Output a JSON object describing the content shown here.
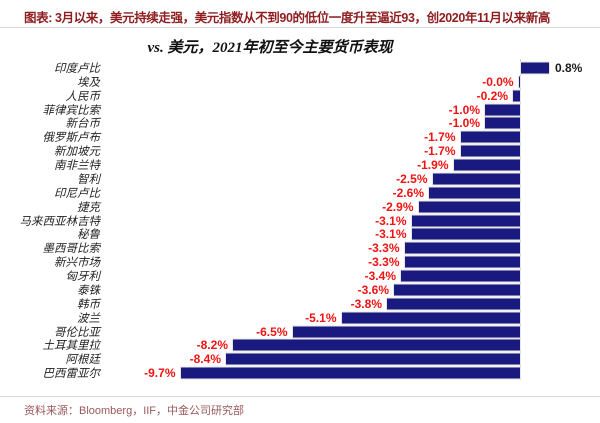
{
  "header": {
    "caption": "图表: 3月以来，美元持续走强，美元指数从不到90的低位一度升至逼近93，创2020年11月以来新高"
  },
  "colors": {
    "caption_text": "#8e1d1f",
    "bar": "#191980",
    "value_negative": "#f21212",
    "value_positive": "#1a1a1a",
    "source_text": "#9a585c",
    "axis_line": "#c9c9c9"
  },
  "chart_data": {
    "type": "bar",
    "orientation": "horizontal",
    "title": "vs. 美元，2021年初至今主要货币表现",
    "xlabel": "",
    "ylabel": "",
    "unit": "%",
    "grid": false,
    "legend": false,
    "xlim": [
      -10.5,
      2.3
    ],
    "bar_color": "#191980",
    "label_colors": {
      "negative": "#f21212",
      "positive": "#1a1a1a"
    },
    "categories": [
      "印度卢比",
      "埃及",
      "人民币",
      "菲律宾比索",
      "新台币",
      "俄罗斯卢布",
      "新加坡元",
      "南非兰特",
      "智利",
      "印尼卢比",
      "捷克",
      "马来西亚林吉特",
      "秘鲁",
      "墨西哥比索",
      "新兴市场",
      "匈牙利",
      "泰铢",
      "韩币",
      "波兰",
      "哥伦比亚",
      "土耳其里拉",
      "阿根廷",
      "巴西雷亚尔"
    ],
    "values": [
      0.8,
      -0.04,
      -0.2,
      -1.0,
      -1.0,
      -1.7,
      -1.7,
      -1.9,
      -2.5,
      -2.6,
      -2.9,
      -3.1,
      -3.1,
      -3.3,
      -3.3,
      -3.4,
      -3.6,
      -3.8,
      -5.1,
      -6.5,
      -8.2,
      -8.4,
      -9.7
    ],
    "labels": [
      "0.8%",
      "-0.0%",
      "-0.2%",
      "-1.0%",
      "-1.0%",
      "-1.7%",
      "-1.7%",
      "-1.9%",
      "-2.5%",
      "-2.6%",
      "-2.9%",
      "-3.1%",
      "-3.1%",
      "-3.3%",
      "-3.3%",
      "-3.4%",
      "-3.6%",
      "-3.8%",
      "-5.1%",
      "-6.5%",
      "-8.2%",
      "-8.4%",
      "-9.7%"
    ]
  },
  "footer": {
    "source": "资料来源：Bloomberg，IIF，中金公司研究部"
  }
}
